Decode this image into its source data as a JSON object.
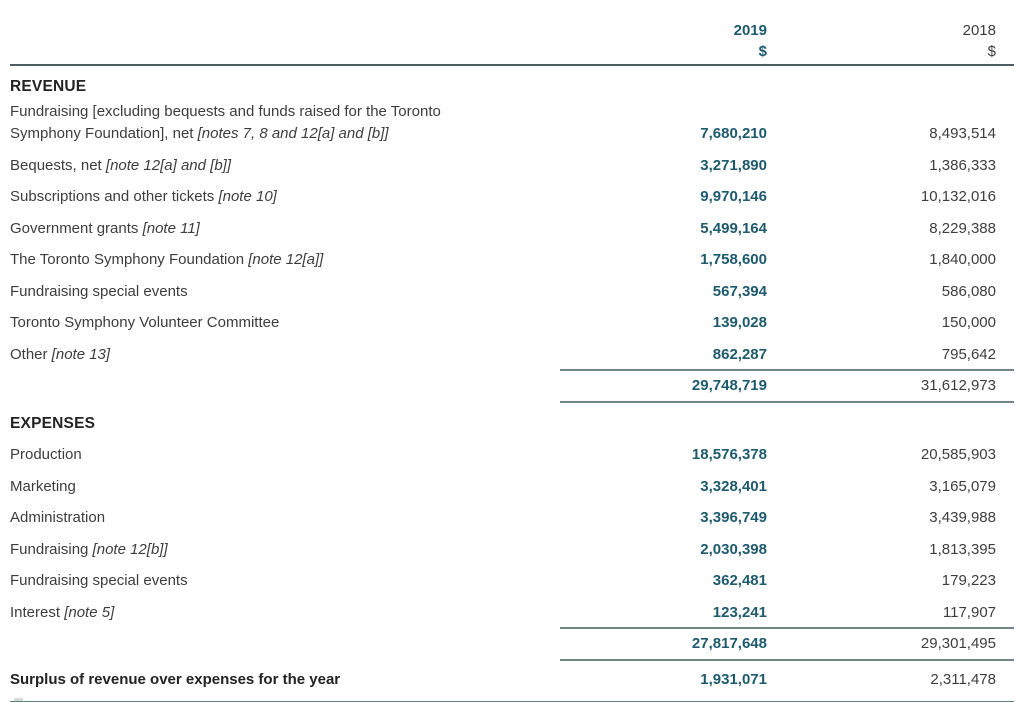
{
  "columns": {
    "year_current": "2019",
    "year_prior": "2018",
    "currency_symbol": "$"
  },
  "sections": [
    {
      "heading": "REVENUE",
      "rows": [
        {
          "label": "Fundraising [excluding bequests and funds raised for the Toronto Symphony Foundation], net",
          "note": "[notes 7, 8 and 12[a] and [b]]",
          "v2019": "7,680,210",
          "v2018": "8,493,514"
        },
        {
          "label": "Bequests, net",
          "note": "[note 12[a] and [b]]",
          "v2019": "3,271,890",
          "v2018": "1,386,333"
        },
        {
          "label": "Subscriptions and other tickets",
          "note": "[note 10]",
          "v2019": "9,970,146",
          "v2018": "10,132,016"
        },
        {
          "label": "Government grants",
          "note": "[note 11]",
          "v2019": "5,499,164",
          "v2018": "8,229,388"
        },
        {
          "label": "The Toronto Symphony Foundation",
          "note": "[note 12[a]]",
          "v2019": "1,758,600",
          "v2018": "1,840,000"
        },
        {
          "label": "Fundraising special events",
          "note": "",
          "v2019": "567,394",
          "v2018": "586,080"
        },
        {
          "label": "Toronto Symphony Volunteer Committee",
          "note": "",
          "v2019": "139,028",
          "v2018": "150,000"
        },
        {
          "label": "Other",
          "note": "[note 13]",
          "v2019": "862,287",
          "v2018": "795,642"
        }
      ],
      "total": {
        "v2019": "29,748,719",
        "v2018": "31,612,973"
      }
    },
    {
      "heading": "EXPENSES",
      "rows": [
        {
          "label": "Production",
          "note": "",
          "v2019": "18,576,378",
          "v2018": "20,585,903"
        },
        {
          "label": "Marketing",
          "note": "",
          "v2019": "3,328,401",
          "v2018": "3,165,079"
        },
        {
          "label": "Administration",
          "note": "",
          "v2019": "3,396,749",
          "v2018": "3,439,988"
        },
        {
          "label": "Fundraising",
          "note": "[note 12[b]]",
          "v2019": "2,030,398",
          "v2018": "1,813,395"
        },
        {
          "label": "Fundraising special events",
          "note": "",
          "v2019": "362,481",
          "v2018": "179,223"
        },
        {
          "label": "Interest",
          "note": "[note 5]",
          "v2019": "123,241",
          "v2018": "117,907"
        }
      ],
      "total": {
        "v2019": "27,817,648",
        "v2018": "29,301,495"
      }
    }
  ],
  "summary": {
    "label": "Surplus of revenue over expenses for the year",
    "v2019": "1,931,071",
    "v2018": "2,311,478"
  },
  "colors": {
    "accent_teal": "#1d5a6e",
    "text_heading": "#232323",
    "text_body": "#3d3d3d",
    "rule_header": "#4b5e63",
    "rule_subtotal": "#708689",
    "rule_bottom": "#577d7c"
  }
}
